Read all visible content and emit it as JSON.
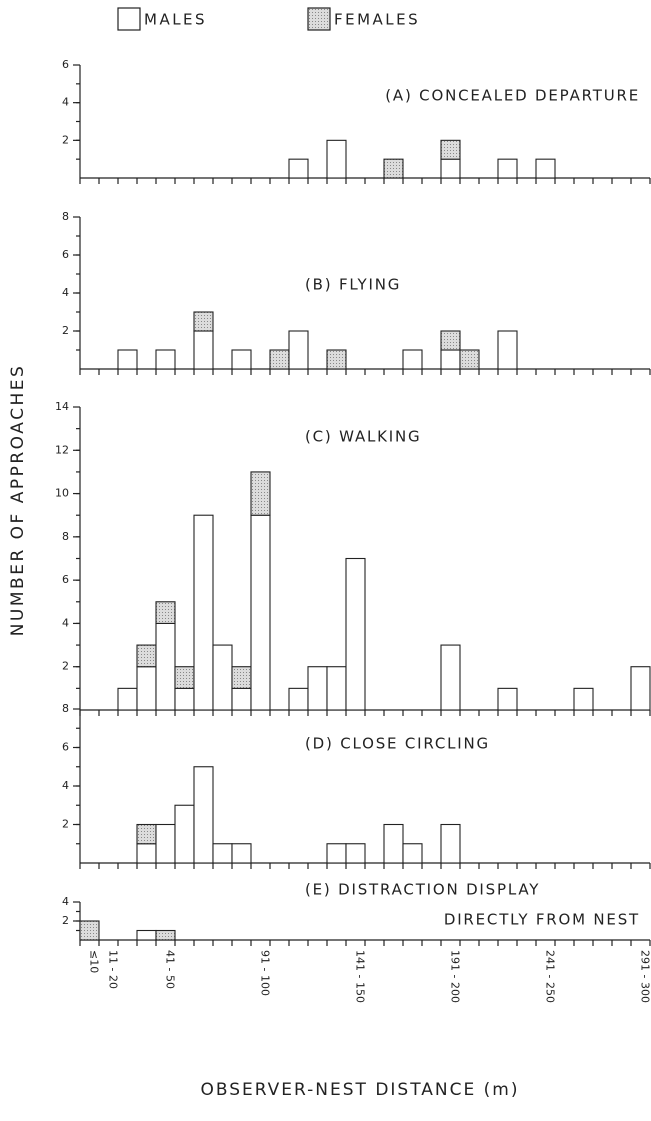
{
  "legend": [
    {
      "name": "MALES",
      "color": "#ffffff"
    },
    {
      "name": "FEMALES",
      "color": "#d4d4d4"
    }
  ],
  "axis_labels": {
    "x": "OBSERVER-NEST DISTANCE (m)",
    "y": "NUMBER OF APPROACHES"
  },
  "categories": [
    "≤10",
    "11 - 20",
    null,
    null,
    "41 - 50",
    null,
    null,
    null,
    null,
    "91 - 100",
    null,
    null,
    null,
    null,
    "141 - 150",
    null,
    null,
    null,
    null,
    "191 - 200",
    null,
    null,
    null,
    null,
    "241 - 250",
    null,
    null,
    null,
    null,
    "291 - 300"
  ],
  "chart_data": [
    {
      "type": "bar",
      "title": [
        "(A) CONCEALED DEPARTURE"
      ],
      "ylim": [
        0,
        6
      ],
      "yticks": [
        2,
        4,
        6
      ],
      "series": [
        {
          "values": [
            0,
            0,
            0,
            0,
            0,
            0,
            0,
            0,
            0,
            0,
            0,
            1,
            0,
            2,
            0,
            0,
            0,
            0,
            0,
            1,
            0,
            0,
            1,
            0,
            1,
            0,
            0,
            0,
            0,
            0
          ]
        },
        {
          "values": [
            0,
            0,
            0,
            0,
            0,
            0,
            0,
            0,
            0,
            0,
            0,
            0,
            0,
            0,
            0,
            0,
            1,
            0,
            0,
            1,
            0,
            0,
            0,
            0,
            0,
            0,
            0,
            0,
            0,
            0
          ]
        }
      ]
    },
    {
      "type": "bar",
      "title": [
        "(B) FLYING"
      ],
      "ylim": [
        0,
        8
      ],
      "yticks": [
        2,
        4,
        6,
        8
      ],
      "series": [
        {
          "values": [
            0,
            0,
            1,
            0,
            1,
            0,
            2,
            0,
            1,
            0,
            0,
            2,
            0,
            0,
            0,
            0,
            0,
            1,
            0,
            1,
            0,
            0,
            2,
            0,
            0,
            0,
            0,
            0,
            0,
            0
          ]
        },
        {
          "values": [
            0,
            0,
            0,
            0,
            0,
            0,
            1,
            0,
            0,
            0,
            1,
            0,
            0,
            1,
            0,
            0,
            0,
            0,
            0,
            1,
            1,
            0,
            0,
            0,
            0,
            0,
            0,
            0,
            0,
            0
          ]
        }
      ]
    },
    {
      "type": "bar",
      "title": [
        "(C) WALKING"
      ],
      "ylim": [
        0,
        14
      ],
      "yticks": [
        2,
        4,
        6,
        8,
        10,
        12,
        14
      ],
      "series": [
        {
          "values": [
            0,
            0,
            1,
            2,
            4,
            1,
            9,
            3,
            1,
            9,
            0,
            1,
            2,
            2,
            7,
            0,
            0,
            0,
            0,
            3,
            0,
            0,
            1,
            0,
            0,
            0,
            1,
            0,
            0,
            2
          ]
        },
        {
          "values": [
            0,
            0,
            0,
            1,
            1,
            1,
            0,
            0,
            1,
            2,
            0,
            0,
            0,
            0,
            0,
            0,
            0,
            0,
            0,
            0,
            0,
            0,
            0,
            0,
            0,
            0,
            0,
            0,
            0,
            0
          ]
        }
      ]
    },
    {
      "type": "bar",
      "title": [
        "(D) CLOSE CIRCLING"
      ],
      "ylim": [
        0,
        8
      ],
      "yticks": [
        2,
        4,
        6,
        8
      ],
      "series": [
        {
          "values": [
            0,
            0,
            0,
            1,
            2,
            3,
            5,
            1,
            1,
            0,
            0,
            0,
            0,
            1,
            1,
            0,
            2,
            1,
            0,
            2,
            0,
            0,
            0,
            0,
            0,
            0,
            0,
            0,
            0,
            0
          ]
        },
        {
          "values": [
            0,
            0,
            0,
            1,
            0,
            0,
            0,
            0,
            0,
            0,
            0,
            0,
            0,
            0,
            0,
            0,
            0,
            0,
            0,
            0,
            0,
            0,
            0,
            0,
            0,
            0,
            0,
            0,
            0,
            0
          ]
        }
      ]
    },
    {
      "type": "bar",
      "title": [
        "(E) DISTRACTION DISPLAY",
        "DIRECTLY FROM NEST"
      ],
      "ylim": [
        0,
        4
      ],
      "yticks": [
        2,
        4
      ],
      "series": [
        {
          "values": [
            0,
            0,
            0,
            1,
            0,
            0,
            0,
            0,
            0,
            0,
            0,
            0,
            0,
            0,
            0,
            0,
            0,
            0,
            0,
            0,
            0,
            0,
            0,
            0,
            0,
            0,
            0,
            0,
            0,
            0
          ]
        },
        {
          "values": [
            2,
            0,
            0,
            0,
            1,
            0,
            0,
            0,
            0,
            0,
            0,
            0,
            0,
            0,
            0,
            0,
            0,
            0,
            0,
            0,
            0,
            0,
            0,
            0,
            0,
            0,
            0,
            0,
            0,
            0
          ]
        }
      ]
    }
  ]
}
